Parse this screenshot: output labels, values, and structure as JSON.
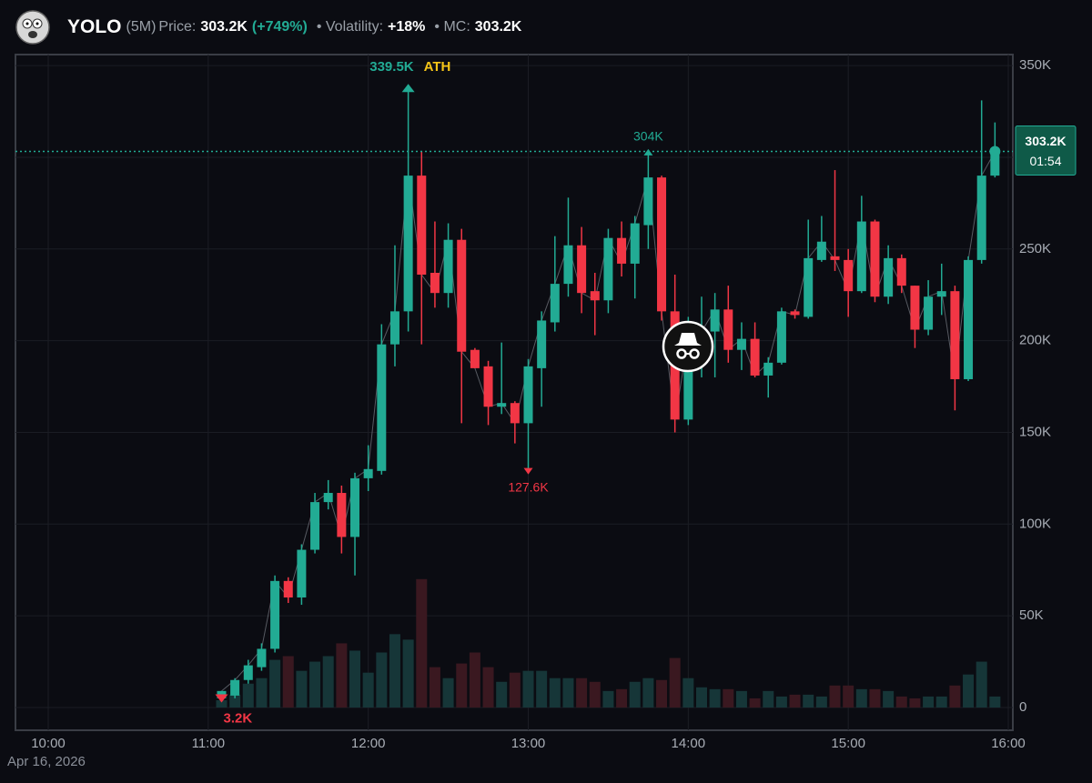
{
  "header": {
    "symbol": "YOLO",
    "interval": "(5M)",
    "price_label": "Price:",
    "price": "303.2K",
    "change": "(+749%)",
    "volatility_label": "• Volatility:",
    "volatility": "+18%",
    "mc_label": "• MC:",
    "mc": "303.2K"
  },
  "chart_data": {
    "type": "candlestick",
    "x": [
      "11:05",
      "11:10",
      "11:15",
      "11:20",
      "11:25",
      "11:30",
      "11:35",
      "11:40",
      "11:45",
      "11:50",
      "11:55",
      "12:00",
      "12:05",
      "12:10",
      "12:15",
      "12:20",
      "12:25",
      "12:30",
      "12:35",
      "12:40",
      "12:45",
      "12:50",
      "12:55",
      "13:00",
      "13:05",
      "13:10",
      "13:15",
      "13:20",
      "13:25",
      "13:30",
      "13:35",
      "13:40",
      "13:45",
      "13:50",
      "13:55",
      "14:00",
      "14:05",
      "14:10",
      "14:15",
      "14:20",
      "14:25",
      "14:30",
      "14:35",
      "14:40",
      "14:45",
      "14:50",
      "14:55",
      "15:00",
      "15:05",
      "15:10",
      "15:15",
      "15:20",
      "15:25",
      "15:30",
      "15:35",
      "15:40",
      "15:45",
      "15:50",
      "15:55"
    ],
    "open": [
      5000,
      6500,
      15000,
      22000,
      32000,
      69000,
      60000,
      86000,
      112000,
      117000,
      93000,
      125000,
      129000,
      198000,
      216000,
      290000,
      237000,
      226000,
      255000,
      195000,
      186000,
      164000,
      166000,
      155000,
      185000,
      210000,
      231000,
      252000,
      227000,
      222000,
      256000,
      242000,
      263000,
      289000,
      216000,
      157000,
      200000,
      205000,
      217000,
      195000,
      201000,
      181000,
      188000,
      216000,
      213000,
      244000,
      246000,
      244000,
      227000,
      265000,
      224000,
      245000,
      230000,
      206000,
      224000,
      227000,
      179000,
      244000,
      290000
    ],
    "high": [
      9000,
      16000,
      26000,
      35000,
      72000,
      71000,
      89000,
      117000,
      124000,
      121000,
      128000,
      143000,
      209000,
      252000,
      339500,
      303000,
      265000,
      264000,
      261000,
      196000,
      189000,
      199000,
      167000,
      190000,
      216000,
      257000,
      278000,
      262000,
      237000,
      261000,
      265000,
      268000,
      304000,
      290000,
      236000,
      213000,
      224000,
      226000,
      230000,
      210000,
      210000,
      191000,
      218000,
      217000,
      266000,
      268000,
      293000,
      250000,
      279000,
      266000,
      252000,
      247000,
      230000,
      233000,
      242000,
      230000,
      246000,
      331000,
      319000
    ],
    "low": [
      3200,
      5000,
      13000,
      20000,
      30000,
      57000,
      56000,
      84000,
      108000,
      84000,
      72000,
      118000,
      127000,
      186000,
      205000,
      198000,
      218000,
      218000,
      155000,
      185000,
      154000,
      160000,
      144000,
      127600,
      164000,
      205000,
      224000,
      215000,
      203000,
      215000,
      235000,
      223000,
      250000,
      211000,
      150000,
      154000,
      180000,
      180000,
      188000,
      184000,
      180000,
      169000,
      187000,
      212000,
      212000,
      243000,
      238000,
      213000,
      226000,
      221000,
      220000,
      226000,
      196000,
      203000,
      214000,
      162000,
      178000,
      242000,
      289000
    ],
    "close": [
      9000,
      15000,
      23000,
      32000,
      69000,
      60000,
      86000,
      112000,
      117000,
      93000,
      125000,
      130000,
      198000,
      216000,
      290000,
      236000,
      226000,
      255000,
      194000,
      185000,
      164000,
      166000,
      155000,
      186000,
      211000,
      231000,
      252000,
      226000,
      222000,
      256000,
      242000,
      264000,
      289000,
      216000,
      157000,
      201000,
      205000,
      217000,
      195000,
      201000,
      181000,
      188000,
      216000,
      214000,
      245000,
      254000,
      244000,
      227000,
      265000,
      224000,
      245000,
      230000,
      206000,
      224000,
      227000,
      179000,
      244000,
      290000,
      303200
    ],
    "volume": [
      4000,
      7000,
      13000,
      16000,
      26000,
      28000,
      20000,
      25000,
      28000,
      35000,
      31000,
      19000,
      30000,
      40000,
      37000,
      70000,
      22000,
      16000,
      24000,
      30000,
      22000,
      14000,
      19000,
      20000,
      20000,
      16000,
      16000,
      16000,
      14000,
      9000,
      10000,
      14000,
      16000,
      15000,
      27000,
      16000,
      11000,
      10000,
      10000,
      9000,
      5000,
      9000,
      6000,
      7000,
      7000,
      6000,
      12000,
      12000,
      10000,
      10000,
      9000,
      6000,
      5000,
      6000,
      6000,
      12000,
      18000,
      25000,
      6000
    ],
    "up_color": "#22ab94",
    "down_color": "#f23645",
    "ylim": [
      -12400,
      356000
    ],
    "yticks": [
      0,
      {
        "value": 50000,
        "label": "50K"
      },
      {
        "value": 100000,
        "label": "100K"
      },
      {
        "value": 150000,
        "label": "150K"
      },
      {
        "value": 200000,
        "label": "200K"
      },
      {
        "value": 250000,
        "label": "250K"
      },
      {
        "value": 300000,
        "label": "300K"
      },
      {
        "value": 350000,
        "label": "350K"
      }
    ],
    "xticks": [
      "10:00",
      "11:00",
      "12:00",
      "13:00",
      "14:00",
      "15:00",
      "16:00"
    ],
    "grid": true,
    "date": "Apr 16, 2026",
    "annotations": [
      {
        "label": "339.5K",
        "value": 339500,
        "x": "12:15",
        "tag": "ATH"
      },
      {
        "label": "304K",
        "value": 304000,
        "x": "13:45"
      },
      {
        "label": "127.6K",
        "value": 127600,
        "x": "13:00"
      },
      {
        "label": "3.2K",
        "value": 3200,
        "x": "11:05"
      }
    ],
    "last": {
      "value": 303200,
      "label": "303.2K",
      "countdown": "01:54"
    }
  }
}
